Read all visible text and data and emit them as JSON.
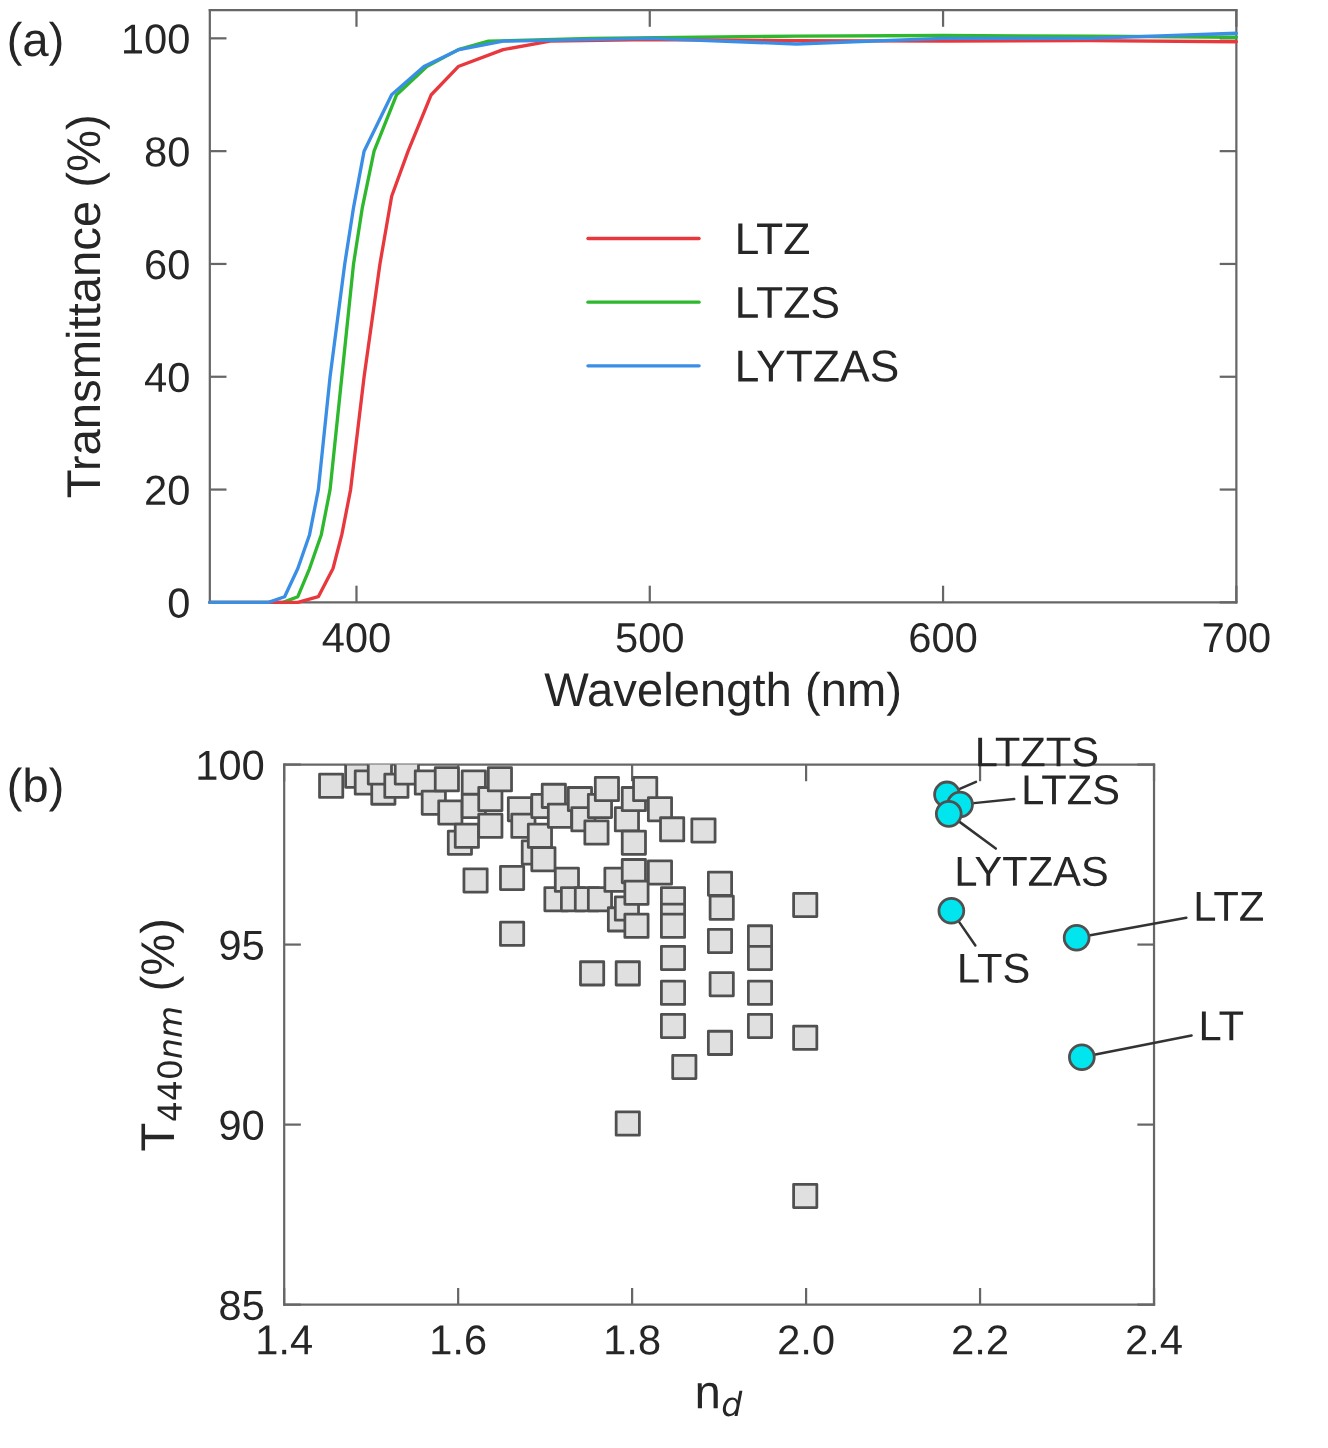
{
  "chart_data": [
    {
      "type": "line",
      "xlabel": "Wavelength (nm)",
      "ylabel": "Transmittance (%)",
      "annotations": [
        "(a)"
      ],
      "xlim": [
        350,
        700
      ],
      "xticks": [
        400,
        500,
        600,
        700
      ],
      "ylim": [
        0,
        105
      ],
      "yticks": [
        0,
        20,
        40,
        60,
        80,
        100
      ],
      "grid": false,
      "legend": "center",
      "marker": "none",
      "line_style": "solid",
      "series": [
        {
          "name": "LTZ",
          "color": "#e8383d",
          "x": [
            350,
            380,
            387,
            392,
            395,
            398,
            402.6,
            408,
            412,
            417.6,
            425.5,
            434.7,
            450,
            466,
            500,
            550,
            600,
            650,
            700
          ],
          "values": [
            0,
            0,
            1,
            6,
            12,
            20,
            40,
            60,
            72,
            80,
            90,
            95,
            98,
            99.5,
            99.8,
            99.6,
            99.5,
            99.6,
            99.4
          ]
        },
        {
          "name": "LTZS",
          "color": "#2db82d",
          "x": [
            350,
            375,
            380,
            384,
            388,
            391,
            395,
            399,
            402,
            406,
            413.7,
            424,
            434.7,
            445,
            480,
            550,
            600,
            650,
            700
          ],
          "values": [
            0,
            0,
            1,
            6,
            12,
            20,
            40,
            60,
            70,
            80,
            90,
            95,
            98,
            99.5,
            100,
            100.4,
            100.5,
            100.4,
            100.2
          ]
        },
        {
          "name": "LYTZAS",
          "color": "#3a8ee6",
          "x": [
            350,
            370,
            375.5,
            380,
            384,
            387,
            391,
            396,
            399,
            402.6,
            412,
            423,
            435,
            450,
            500,
            550,
            600,
            650,
            700
          ],
          "values": [
            0,
            0,
            1,
            6,
            12,
            20,
            40,
            60,
            70,
            80,
            90,
            95,
            98,
            99.5,
            100,
            99.0,
            100,
            100,
            100.9
          ]
        }
      ]
    },
    {
      "type": "scatter",
      "xlabel": "n$_{d}$",
      "ylabel": "T$_{440nm}$ (%)",
      "annotations": [
        "(b)",
        {
          "text": "LTZTS",
          "x": 2.162,
          "y": 99.17
        },
        {
          "text": "LTZS",
          "x": 2.177,
          "y": 98.89
        },
        {
          "text": "LYTZAS",
          "x": 2.164,
          "y": 98.63
        },
        {
          "text": "LTS",
          "x": 2.167,
          "y": 95.94
        },
        {
          "text": "LTZ",
          "x": 2.311,
          "y": 95.19
        },
        {
          "text": "LT",
          "x": 2.317,
          "y": 91.87
        }
      ],
      "xlim": [
        1.4,
        2.4
      ],
      "xticks": [
        1.4,
        1.6,
        1.8,
        {
          "value": 2,
          "label": "2.0"
        },
        2.2,
        2.4
      ],
      "ylim": [
        85,
        100
      ],
      "yticks": [
        85,
        90,
        95,
        100
      ],
      "grid": false,
      "legend": false,
      "series": [
        {
          "color": "#e0e0e0",
          "marker": "square",
          "x": [
            1.454,
            1.484,
            1.495,
            1.514,
            1.51,
            1.529,
            1.541,
            1.564,
            1.572,
            1.591,
            1.587,
            1.602,
            1.61,
            1.618,
            1.618,
            1.637,
            1.637,
            1.648,
            1.62,
            1.662,
            1.662,
            1.671,
            1.675,
            1.687,
            1.694,
            1.698,
            1.698,
            1.71,
            1.717,
            1.713,
            1.725,
            1.732,
            1.74,
            1.744,
            1.748,
            1.759,
            1.763,
            1.763,
            1.771,
            1.754,
            1.795,
            1.782,
            1.786,
            1.794,
            1.794,
            1.802,
            1.802,
            1.802,
            1.805,
            1.805,
            1.815,
            1.832,
            1.832,
            1.846,
            1.847,
            1.847,
            1.847,
            1.847,
            1.847,
            1.847,
            1.86,
            1.795,
            1.882,
            1.901,
            1.903,
            1.901,
            1.903,
            1.901,
            1.947,
            1.947,
            1.947,
            1.947,
            1.999,
            1.999,
            1.999
          ],
          "values": [
            99.41,
            99.69,
            99.5,
            99.22,
            99.78,
            99.41,
            99.78,
            99.5,
            98.94,
            98.67,
            99.59,
            97.83,
            98.02,
            99.5,
            98.85,
            98.3,
            99.04,
            99.59,
            96.78,
            96.85,
            95.3,
            98.76,
            98.3,
            97.56,
            98.02,
            97.37,
            98.85,
            99.13,
            98.58,
            96.26,
            96.8,
            96.26,
            99.04,
            98.48,
            96.26,
            98.11,
            96.26,
            98.85,
            99.32,
            94.2,
            94.2,
            96.8,
            95.7,
            96.0,
            98.48,
            99.04,
            97.83,
            97.04,
            96.44,
            95.52,
            99.32,
            98.76,
            97.0,
            98.2,
            96.26,
            95.8,
            95.52,
            94.63,
            93.66,
            92.74,
            91.6,
            90.03,
            98.17,
            96.69,
            96.02,
            95.1,
            93.9,
            92.27,
            95.2,
            94.63,
            93.66,
            92.74,
            96.1,
            92.41,
            88.02
          ]
        },
        {
          "color": "#00e5ee",
          "marker": "circle",
          "x": [
            2.162,
            2.177,
            2.164,
            2.167,
            2.311,
            2.317
          ],
          "values": [
            99.17,
            98.89,
            98.63,
            95.94,
            95.19,
            91.87
          ]
        }
      ]
    }
  ]
}
